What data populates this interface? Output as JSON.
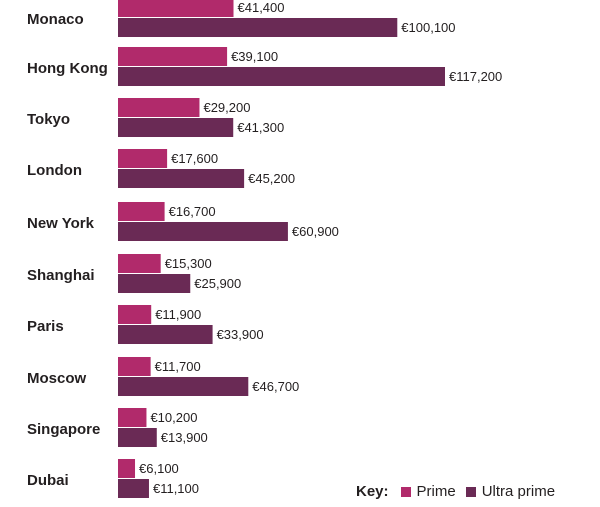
{
  "chart_data": {
    "type": "bar",
    "orientation": "horizontal",
    "categories": [
      "Monaco",
      "Hong Kong",
      "Tokyo",
      "London",
      "New York",
      "Shanghai",
      "Paris",
      "Moscow",
      "Singapore",
      "Dubai"
    ],
    "series": [
      {
        "name": "Prime",
        "color": "#b12a6b",
        "values": [
          41400,
          39100,
          29200,
          17600,
          16700,
          15300,
          11900,
          11700,
          10200,
          6100
        ],
        "labels": [
          "€41,400",
          "€39,100",
          "€29,200",
          "€17,600",
          "€16,700",
          "€15,300",
          "€11,900",
          "€11,700",
          "€10,200",
          "€6,100"
        ]
      },
      {
        "name": "Ultra prime",
        "color": "#6a2a55",
        "values": [
          100100,
          117200,
          41300,
          45200,
          60900,
          25900,
          33900,
          46700,
          13900,
          11100
        ],
        "labels": [
          "€100,100",
          "€117,200",
          "€41,300",
          "€45,200",
          "€60,900",
          "€25,900",
          "€33,900",
          "€46,700",
          "€13,900",
          "€11,100"
        ]
      }
    ],
    "xlim": [
      0,
      117200
    ],
    "grid": false,
    "legend_position": "bottom-right"
  },
  "legend": {
    "title": "Key:",
    "items": [
      "Prime",
      "Ultra prime"
    ]
  }
}
